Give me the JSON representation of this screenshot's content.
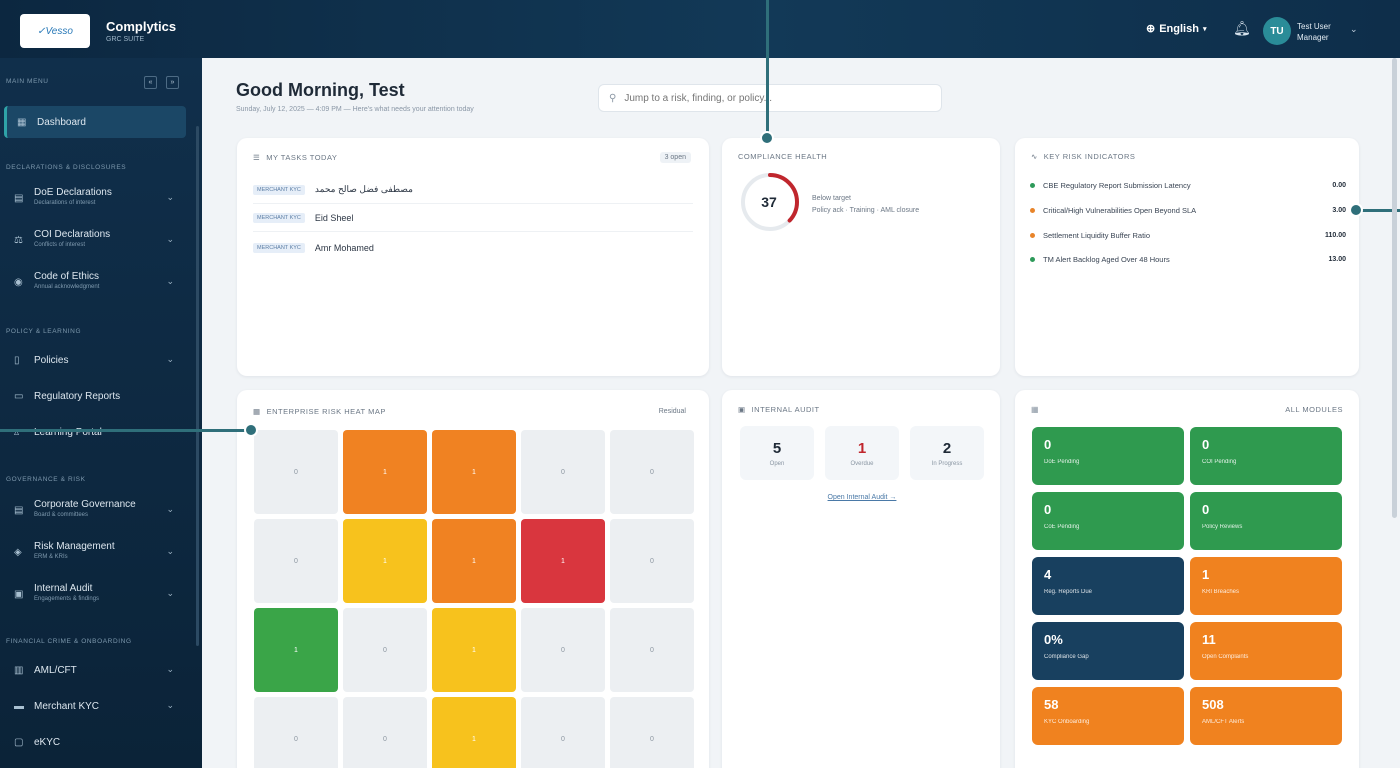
{
  "topbar": {
    "logo_text": "✓Vesso",
    "brand": "Complytics",
    "brand_sub": "GRC SUITE",
    "language": "English",
    "user_name": "Test User",
    "user_role": "Manager",
    "avatar_initials": "TU"
  },
  "sidebar": {
    "main_menu": "MAIN MENU",
    "sections": [
      "DECLARATIONS & DISCLOSURES",
      "POLICY & LEARNING",
      "GOVERNANCE & RISK",
      "FINANCIAL CRIME & ONBOARDING"
    ],
    "items": [
      {
        "label": "Dashboard",
        "sub": ""
      },
      {
        "label": "DoE Declarations",
        "sub": "Declarations of interest"
      },
      {
        "label": "COI Declarations",
        "sub": "Conflicts of interest"
      },
      {
        "label": "Code of Ethics",
        "sub": "Annual acknowledgment"
      },
      {
        "label": "Policies",
        "sub": ""
      },
      {
        "label": "Regulatory Reports",
        "sub": ""
      },
      {
        "label": "Learning Portal",
        "sub": ""
      },
      {
        "label": "Corporate Governance",
        "sub": "Board & committees"
      },
      {
        "label": "Risk Management",
        "sub": "ERM & KRIs"
      },
      {
        "label": "Internal Audit",
        "sub": "Engagements & findings"
      },
      {
        "label": "AML/CFT",
        "sub": ""
      },
      {
        "label": "Merchant KYC",
        "sub": ""
      },
      {
        "label": "eKYC",
        "sub": ""
      }
    ]
  },
  "header": {
    "greeting": "Good Morning, Test",
    "subtitle": "Sunday, July 12, 2025 — 4:09 PM — Here's what needs your attention today",
    "search_placeholder": "Jump to a risk, finding, or policy..."
  },
  "tasks_card": {
    "title": "MY TASKS TODAY",
    "badge": "3 open",
    "tasks": [
      {
        "tag": "MERCHANT KYC",
        "name": "مصطفى فضل صالح محمد"
      },
      {
        "tag": "MERCHANT KYC",
        "name": "Eid Sheel"
      },
      {
        "tag": "MERCHANT KYC",
        "name": "Amr Mohamed"
      }
    ]
  },
  "compliance_card": {
    "title": "COMPLIANCE HEALTH",
    "score": "37",
    "score_fraction": 0.37,
    "line1": "Below target",
    "line2": "Policy ack · Training · AML closure"
  },
  "kri_card": {
    "title": "KEY RISK INDICATORS",
    "items": [
      {
        "label": "CBE Regulatory Report Submission Latency",
        "value": "0.00",
        "color": "#2e9a5a"
      },
      {
        "label": "Critical/High Vulnerabilities Open Beyond SLA",
        "value": "3.00",
        "color": "#e8842a"
      },
      {
        "label": "Settlement Liquidity Buffer Ratio",
        "value": "110.00",
        "color": "#e8842a"
      },
      {
        "label": "TM Alert Backlog Aged Over 48 Hours",
        "value": "13.00",
        "color": "#2e9a5a"
      }
    ]
  },
  "heatmap_card": {
    "title": "ENTERPRISE RISK HEAT MAP",
    "badge": "Residual",
    "rows": [
      [
        {
          "v": "0",
          "c": "#eceff2"
        },
        {
          "v": "1",
          "c": "#f08222"
        },
        {
          "v": "1",
          "c": "#f08222"
        },
        {
          "v": "0",
          "c": "#eceff2"
        },
        {
          "v": "0",
          "c": "#eceff2"
        }
      ],
      [
        {
          "v": "0",
          "c": "#eceff2"
        },
        {
          "v": "1",
          "c": "#f7c21d"
        },
        {
          "v": "1",
          "c": "#f08222"
        },
        {
          "v": "1",
          "c": "#d9363e"
        },
        {
          "v": "0",
          "c": "#eceff2"
        }
      ],
      [
        {
          "v": "1",
          "c": "#3aa548"
        },
        {
          "v": "0",
          "c": "#eceff2"
        },
        {
          "v": "1",
          "c": "#f7c21d"
        },
        {
          "v": "0",
          "c": "#eceff2"
        },
        {
          "v": "0",
          "c": "#eceff2"
        }
      ],
      [
        {
          "v": "0",
          "c": "#eceff2"
        },
        {
          "v": "0",
          "c": "#eceff2"
        },
        {
          "v": "1",
          "c": "#f7c21d"
        },
        {
          "v": "0",
          "c": "#eceff2"
        },
        {
          "v": "0",
          "c": "#eceff2"
        }
      ]
    ]
  },
  "audit_card": {
    "title": "INTERNAL AUDIT",
    "stats": [
      {
        "num": "5",
        "label": "Open"
      },
      {
        "num": "1",
        "label": "Overdue",
        "color": "#c0262d"
      },
      {
        "num": "2",
        "label": "In Progress"
      }
    ],
    "link": "Open Internal Audit →"
  },
  "modules_card": {
    "title": "ALL MODULES",
    "tiles": [
      {
        "num": "0",
        "label": "DoE Pending",
        "color": "#2f9a4f"
      },
      {
        "num": "0",
        "label": "COI Pending",
        "color": "#2f9a4f"
      },
      {
        "num": "0",
        "label": "CoE Pending",
        "color": "#2f9a4f"
      },
      {
        "num": "0",
        "label": "Policy Reviews",
        "color": "#2f9a4f"
      },
      {
        "num": "4",
        "label": "Reg. Reports Due",
        "color": "#18405f"
      },
      {
        "num": "1",
        "label": "KRI Breaches",
        "color": "#f0821f"
      },
      {
        "num": "0%",
        "label": "Compliance Gap",
        "color": "#18405f"
      },
      {
        "num": "11",
        "label": "Open Complaints",
        "color": "#f0821f"
      },
      {
        "num": "58",
        "label": "KYC Onboarding",
        "color": "#f0821f"
      },
      {
        "num": "508",
        "label": "AML/CFT Alerts",
        "color": "#f0821f"
      }
    ]
  }
}
